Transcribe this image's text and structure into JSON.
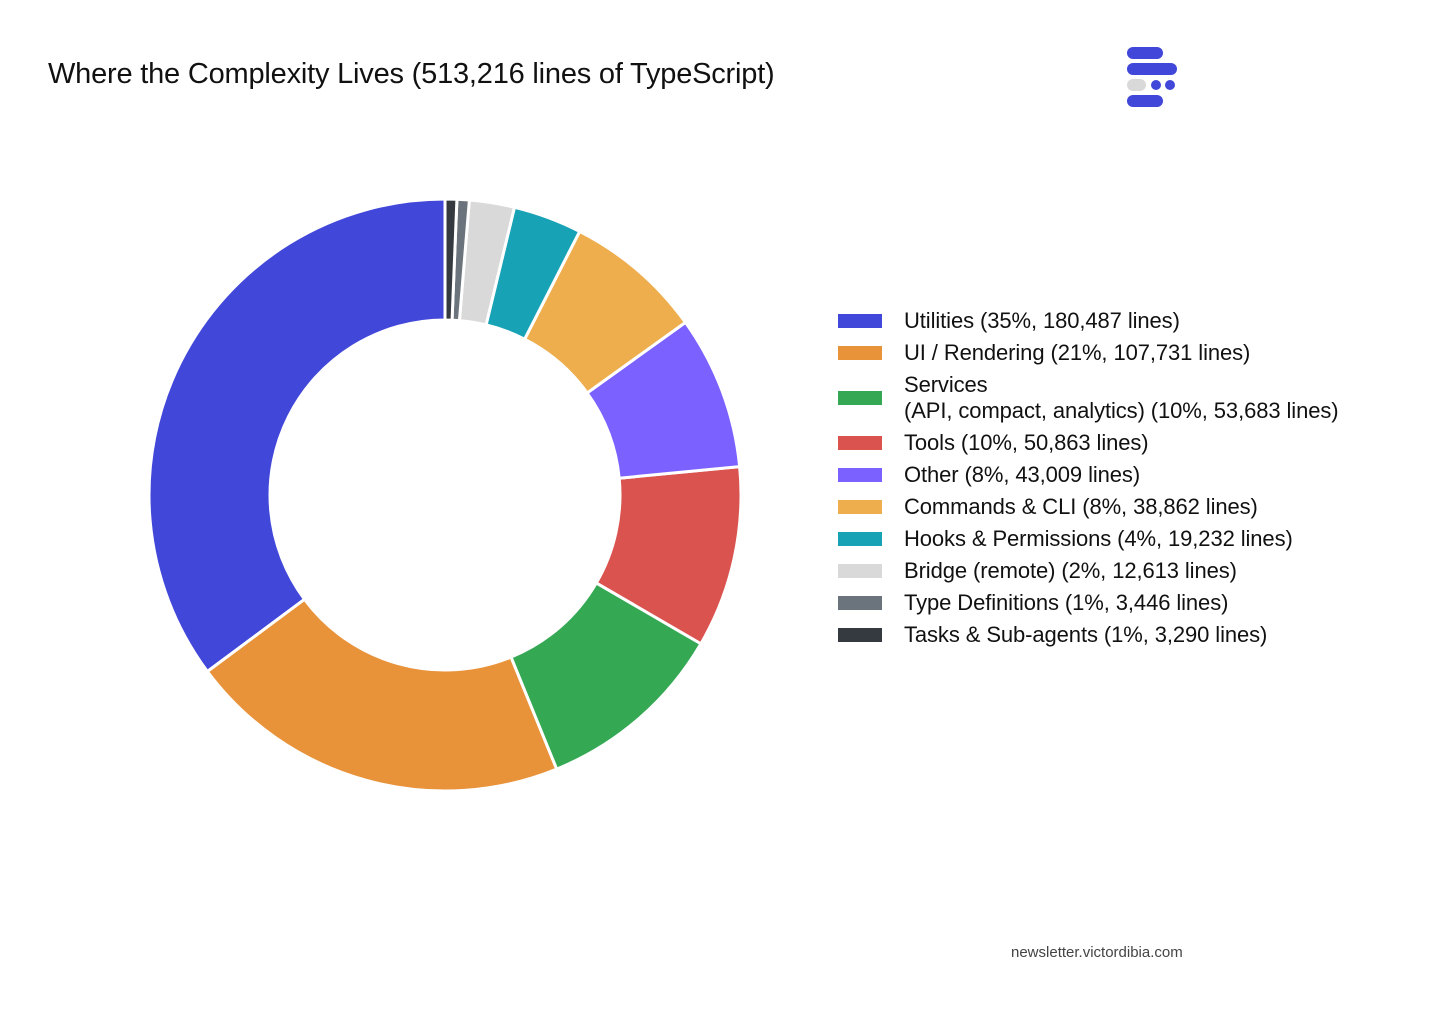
{
  "chart_data": {
    "type": "pie",
    "style": "donut",
    "title": "Where the Complexity Lives (513,216 lines of TypeScript)",
    "total_lines": 513216,
    "slices": [
      {
        "label": "Utilities",
        "legend": "Utilities  (35%, 180,487 lines)",
        "percent": 35,
        "value": 180487,
        "color": "#4147D9"
      },
      {
        "label": "UI / Rendering",
        "legend": "UI / Rendering  (21%, 107,731 lines)",
        "percent": 21,
        "value": 107731,
        "color": "#E8923A"
      },
      {
        "label": "Services (API, compact, analytics)",
        "legend": "Services\n(API, compact, analytics)  (10%, 53,683 lines)",
        "percent": 10,
        "value": 53683,
        "color": "#34A853"
      },
      {
        "label": "Tools",
        "legend": "Tools  (10%, 50,863 lines)",
        "percent": 10,
        "value": 50863,
        "color": "#DA534F"
      },
      {
        "label": "Other",
        "legend": "Other  (8%, 43,009 lines)",
        "percent": 8,
        "value": 43009,
        "color": "#7B61FF"
      },
      {
        "label": "Commands & CLI",
        "legend": "Commands & CLI  (8%, 38,862 lines)",
        "percent": 8,
        "value": 38862,
        "color": "#EEAE4E"
      },
      {
        "label": "Hooks & Permissions",
        "legend": "Hooks & Permissions  (4%, 19,232 lines)",
        "percent": 4,
        "value": 19232,
        "color": "#18A2B6"
      },
      {
        "label": "Bridge (remote)",
        "legend": "Bridge (remote)  (2%, 12,613 lines)",
        "percent": 2,
        "value": 12613,
        "color": "#D9D9D9"
      },
      {
        "label": "Type Definitions",
        "legend": "Type Definitions  (1%, 3,446 lines)",
        "percent": 1,
        "value": 3446,
        "color": "#6B747C"
      },
      {
        "label": "Tasks & Sub-agents",
        "legend": "Tasks & Sub-agents  (1%, 3,290 lines)",
        "percent": 1,
        "value": 3290,
        "color": "#343A40"
      }
    ],
    "start": "top",
    "direction": "counterclockwise",
    "legend_position": "right"
  },
  "colors": {
    "brand": "#4147D9",
    "logo_light": "#D9D9D9"
  },
  "logo": {
    "icon": "newsletter-logo-icon"
  },
  "footer": {
    "text": "newsletter.victordibia.com"
  }
}
